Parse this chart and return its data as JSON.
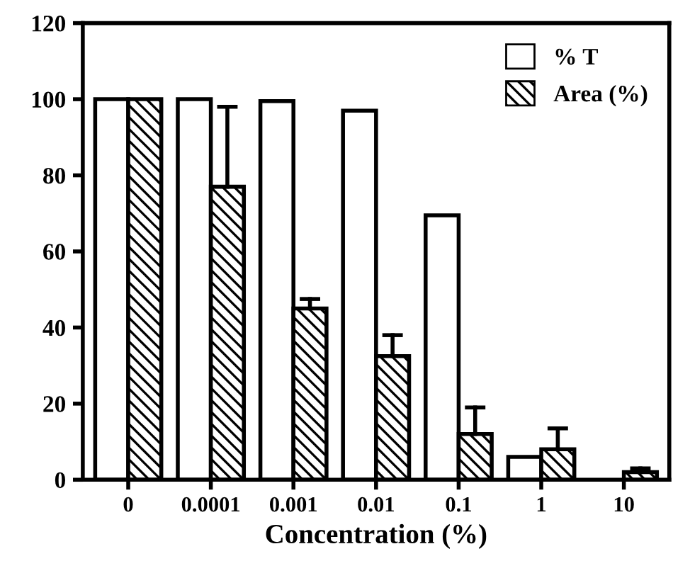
{
  "chart_data": {
    "type": "bar",
    "xlabel": "Concentration (%)",
    "categories": [
      "0",
      "0.0001",
      "0.001",
      "0.01",
      "0.1",
      "1",
      "10"
    ],
    "series": [
      {
        "name": "% T",
        "color": "#ffffff",
        "values": [
          100,
          100,
          99.5,
          97,
          69.5,
          6,
          null
        ]
      },
      {
        "name": "Area (%)",
        "color": "#000000",
        "values": [
          100,
          77,
          45,
          32.5,
          12,
          8,
          2
        ],
        "errors": [
          null,
          [
            77,
            98
          ],
          [
            45,
            47.5
          ],
          [
            32.5,
            38
          ],
          [
            12,
            19
          ],
          [
            8,
            13.5
          ],
          [
            2,
            3
          ]
        ]
      }
    ],
    "ylim": [
      0,
      120
    ],
    "yticks": [
      0,
      20,
      40,
      60,
      80,
      100,
      120
    ],
    "grid": false,
    "legend": "top right"
  }
}
